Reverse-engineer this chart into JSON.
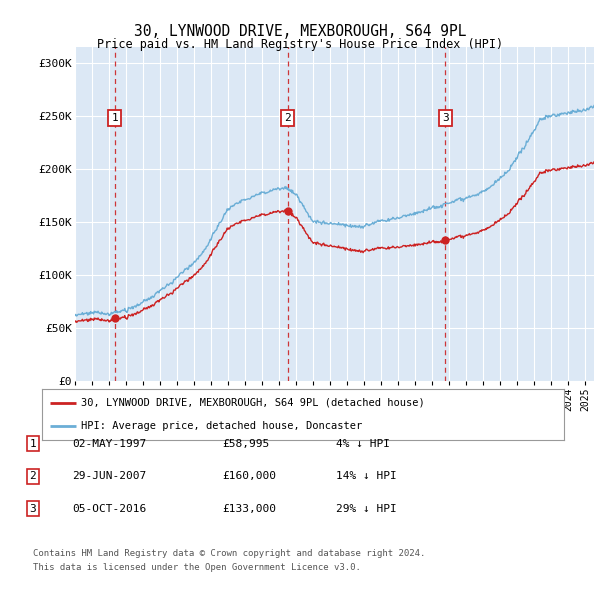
{
  "title1": "30, LYNWOOD DRIVE, MEXBOROUGH, S64 9PL",
  "title2": "Price paid vs. HM Land Registry's House Price Index (HPI)",
  "yticks": [
    0,
    50000,
    100000,
    150000,
    200000,
    250000,
    300000
  ],
  "ytick_labels": [
    "£0",
    "£50K",
    "£100K",
    "£150K",
    "£200K",
    "£250K",
    "£300K"
  ],
  "xlim_start": 1995.0,
  "xlim_end": 2025.5,
  "ylim": [
    0,
    315000
  ],
  "sale_dates": [
    1997.33,
    2007.49,
    2016.75
  ],
  "sale_prices": [
    58995,
    160000,
    133000
  ],
  "sale_labels": [
    "1",
    "2",
    "3"
  ],
  "legend_line1": "30, LYNWOOD DRIVE, MEXBOROUGH, S64 9PL (detached house)",
  "legend_line2": "HPI: Average price, detached house, Doncaster",
  "table_data": [
    [
      "1",
      "02-MAY-1997",
      "£58,995",
      "4% ↓ HPI"
    ],
    [
      "2",
      "29-JUN-2007",
      "£160,000",
      "14% ↓ HPI"
    ],
    [
      "3",
      "05-OCT-2016",
      "£133,000",
      "29% ↓ HPI"
    ]
  ],
  "footnote1": "Contains HM Land Registry data © Crown copyright and database right 2024.",
  "footnote2": "This data is licensed under the Open Government Licence v3.0.",
  "hpi_color": "#6baed6",
  "price_color": "#cc2222",
  "bg_color": "#dce8f5",
  "grid_color": "white",
  "dashed_color": "#cc2222"
}
